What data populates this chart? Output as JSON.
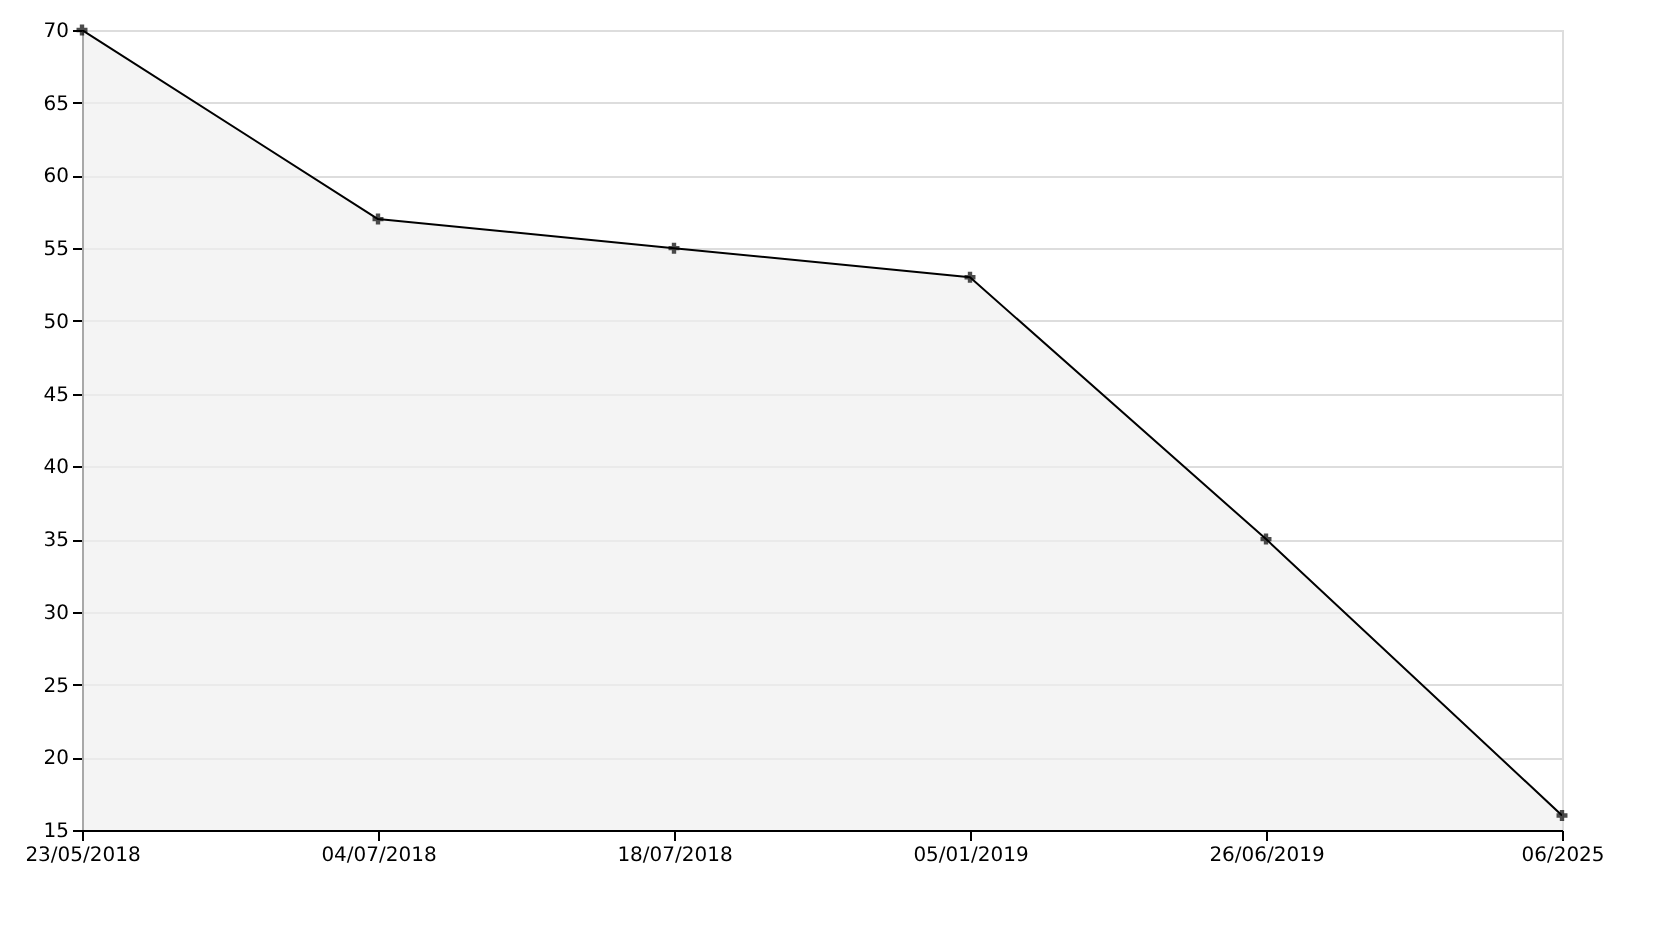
{
  "chart_data": {
    "type": "area",
    "categories": [
      "23/05/2018",
      "04/07/2018",
      "18/07/2018",
      "05/01/2019",
      "26/06/2019",
      "06/2025"
    ],
    "series": [
      {
        "color": "#f0f0f0",
        "values": [
          70,
          57,
          55,
          53,
          35,
          16
        ]
      }
    ],
    "ylim": [
      15,
      70
    ],
    "yticks": [
      15,
      20,
      25,
      30,
      35,
      40,
      45,
      50,
      55,
      60,
      65,
      70
    ],
    "grid": "y",
    "marker": "cross",
    "line_style": "solid"
  }
}
